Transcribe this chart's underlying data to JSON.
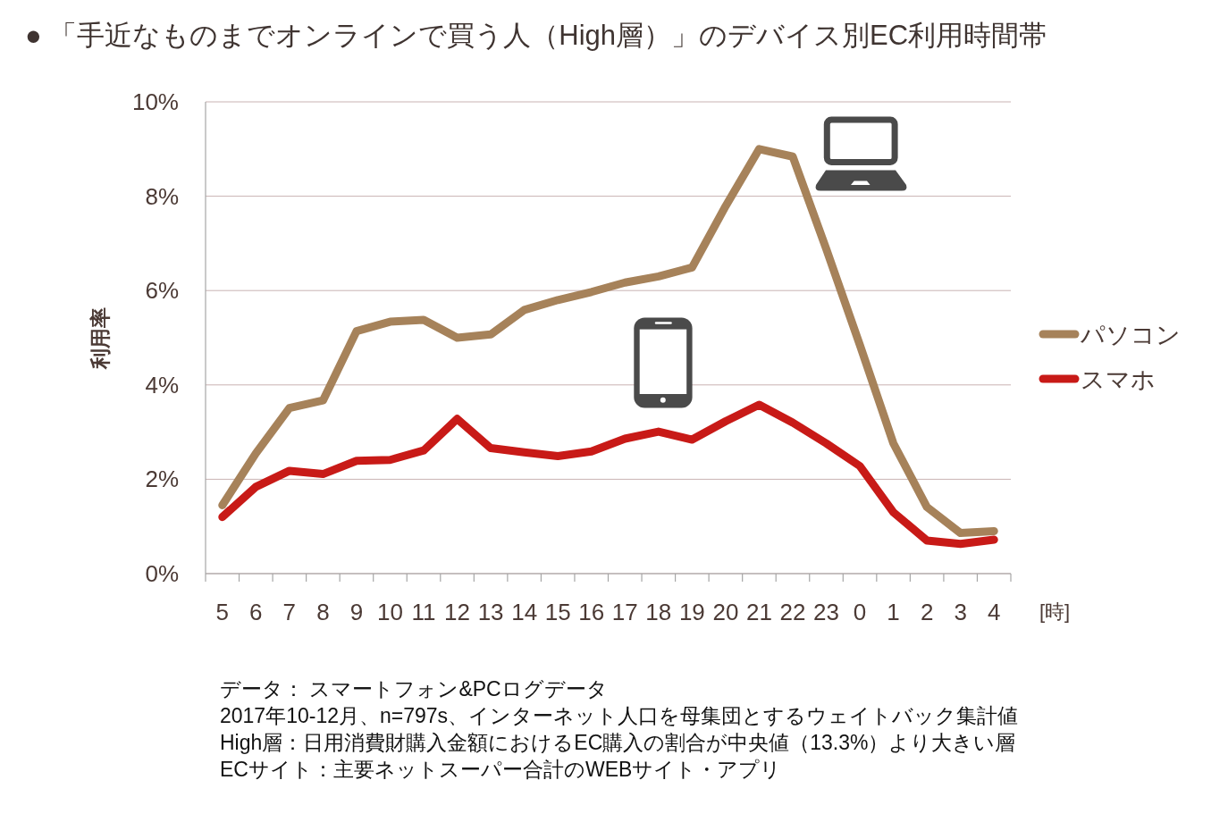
{
  "chart_data": {
    "type": "line",
    "title": "● 「手近なものまでオンラインで買う人（High層）」のデバイス別EC利用時間帯",
    "ylabel": "利用率",
    "xlabel": "[時]",
    "categories": [
      "5",
      "6",
      "7",
      "8",
      "9",
      "10",
      "11",
      "12",
      "13",
      "14",
      "15",
      "16",
      "17",
      "18",
      "19",
      "20",
      "21",
      "22",
      "23",
      "0",
      "1",
      "2",
      "3",
      "4"
    ],
    "series": [
      {
        "name": "パソコン",
        "color": "#a6825a",
        "values": [
          1.45,
          2.55,
          3.51,
          3.67,
          5.14,
          5.34,
          5.38,
          5.0,
          5.07,
          5.59,
          5.8,
          5.97,
          6.17,
          6.3,
          6.49,
          7.79,
          9.0,
          8.84,
          6.88,
          4.85,
          2.76,
          1.41,
          0.86,
          0.9
        ]
      },
      {
        "name": "スマホ",
        "color": "#c81a17",
        "values": [
          1.2,
          1.84,
          2.18,
          2.11,
          2.39,
          2.41,
          2.61,
          3.28,
          2.66,
          2.57,
          2.49,
          2.59,
          2.86,
          3.01,
          2.84,
          3.23,
          3.58,
          3.2,
          2.76,
          2.28,
          1.3,
          0.7,
          0.63,
          0.72
        ]
      }
    ],
    "ylim": [
      0,
      10
    ],
    "yticks": [
      {
        "value": 0,
        "label": "0%"
      },
      {
        "value": 2,
        "label": "2%"
      },
      {
        "value": 4,
        "label": "4%"
      },
      {
        "value": 6,
        "label": "6%"
      },
      {
        "value": 8,
        "label": "8%"
      },
      {
        "value": 10,
        "label": "10%"
      }
    ],
    "grid": "y",
    "legend": "right",
    "annotations": [
      "データ： スマートフォン&PCログデータ",
      "2017年10-12月、n=797s、インターネット人口を母集団とするウェイトバック集計値",
      "High層：日用消費財購入金額におけるEC購入の割合が中央値（13.3%）より大きい層",
      "ECサイト：主要ネットスーパー合計のWEBサイト・アプリ"
    ]
  }
}
